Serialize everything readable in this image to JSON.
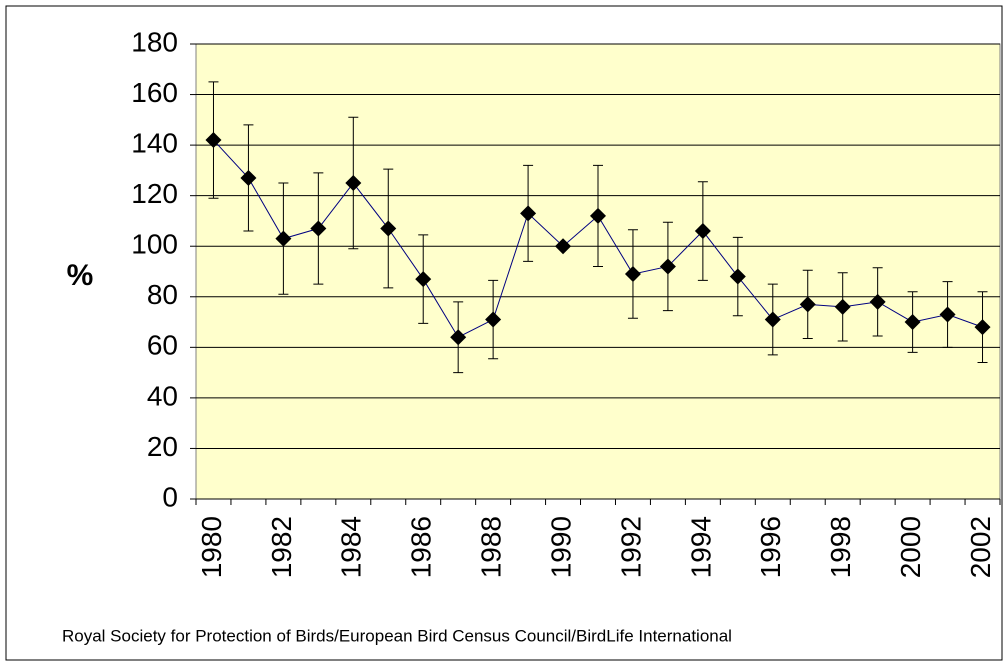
{
  "chart_data": {
    "type": "line",
    "y_label": "%",
    "source": "Royal Society for Protection of Birds/European Bird Census Council/BirdLife International",
    "categories": [
      "1980",
      null,
      "1982",
      null,
      "1984",
      null,
      "1986",
      null,
      "1988",
      null,
      "1990",
      null,
      "1992",
      null,
      "1994",
      null,
      "1996",
      null,
      "1998",
      null,
      "2000",
      null,
      "2002"
    ],
    "series": [
      {
        "color": "#000080",
        "values": [
          142,
          127,
          103,
          107,
          125,
          107,
          87,
          64,
          71,
          113,
          100,
          112,
          89,
          92,
          106,
          88,
          71,
          77,
          76,
          78,
          70,
          73,
          68
        ],
        "errors": [
          23,
          21,
          22,
          22,
          26,
          23.5,
          17.5,
          14,
          15.5,
          19,
          0,
          20,
          17.5,
          17.5,
          19.5,
          15.5,
          14,
          13.5,
          13.5,
          13.5,
          12,
          13,
          14
        ]
      }
    ],
    "ylim": [
      0,
      180
    ],
    "yticks": [
      0,
      20,
      40,
      60,
      80,
      100,
      120,
      140,
      160,
      180
    ],
    "grid": true
  }
}
